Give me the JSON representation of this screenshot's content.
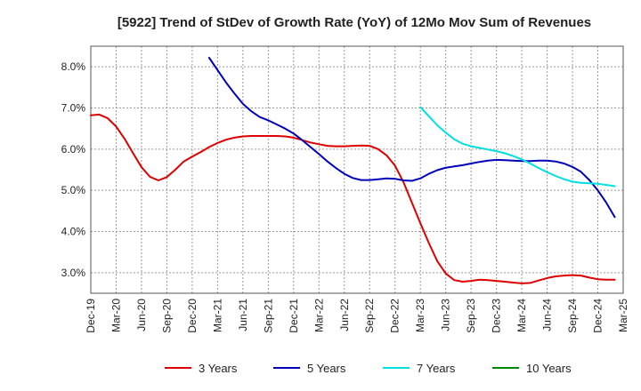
{
  "chart_data": {
    "type": "line",
    "title": "[5922]  Trend of StDev of Growth Rate (YoY) of 12Mo Mov Sum of Revenues",
    "xlabel": "",
    "ylabel": "",
    "ylim": [
      2.5,
      8.5
    ],
    "grid": true,
    "legend_position": "bottom",
    "x_tick_labels": [
      "Dec-19",
      "Mar-20",
      "Jun-20",
      "Sep-20",
      "Dec-20",
      "Mar-21",
      "Jun-21",
      "Sep-21",
      "Dec-21",
      "Mar-22",
      "Jun-22",
      "Sep-22",
      "Dec-22",
      "Mar-23",
      "Jun-23",
      "Sep-23",
      "Dec-23",
      "Mar-24",
      "Jun-24",
      "Sep-24",
      "Dec-24",
      "Mar-25"
    ],
    "y_ticks": [
      3.0,
      4.0,
      5.0,
      6.0,
      7.0,
      8.0
    ],
    "y_tick_labels": [
      "3.0%",
      "4.0%",
      "5.0%",
      "6.0%",
      "7.0%",
      "8.0%"
    ],
    "series": [
      {
        "name": "3 Years",
        "color": "#dd0000",
        "values": [
          [
            0,
            6.82
          ],
          [
            1,
            6.84
          ],
          [
            2,
            6.75
          ],
          [
            3,
            6.55
          ],
          [
            4,
            6.25
          ],
          [
            5,
            5.9
          ],
          [
            6,
            5.56
          ],
          [
            7,
            5.33
          ],
          [
            8,
            5.24
          ],
          [
            9,
            5.32
          ],
          [
            10,
            5.5
          ],
          [
            11,
            5.7
          ],
          [
            12,
            5.82
          ],
          [
            13,
            5.93
          ],
          [
            14,
            6.05
          ],
          [
            15,
            6.15
          ],
          [
            16,
            6.23
          ],
          [
            17,
            6.28
          ],
          [
            18,
            6.31
          ],
          [
            19,
            6.32
          ],
          [
            20,
            6.32
          ],
          [
            21,
            6.32
          ],
          [
            22,
            6.32
          ],
          [
            23,
            6.31
          ],
          [
            24,
            6.28
          ],
          [
            25,
            6.22
          ],
          [
            26,
            6.16
          ],
          [
            27,
            6.12
          ],
          [
            28,
            6.08
          ],
          [
            29,
            6.07
          ],
          [
            30,
            6.07
          ],
          [
            31,
            6.08
          ],
          [
            32,
            6.09
          ],
          [
            33,
            6.08
          ],
          [
            34,
            6.0
          ],
          [
            35,
            5.85
          ],
          [
            36,
            5.6
          ],
          [
            37,
            5.2
          ],
          [
            38,
            4.7
          ],
          [
            39,
            4.2
          ],
          [
            40,
            3.72
          ],
          [
            41,
            3.28
          ],
          [
            42,
            2.98
          ],
          [
            43,
            2.82
          ],
          [
            44,
            2.78
          ],
          [
            45,
            2.8
          ],
          [
            46,
            2.83
          ],
          [
            47,
            2.82
          ],
          [
            48,
            2.8
          ],
          [
            49,
            2.78
          ],
          [
            50,
            2.76
          ],
          [
            51,
            2.74
          ],
          [
            52,
            2.75
          ],
          [
            53,
            2.81
          ],
          [
            54,
            2.87
          ],
          [
            55,
            2.91
          ],
          [
            56,
            2.93
          ],
          [
            57,
            2.94
          ],
          [
            58,
            2.93
          ],
          [
            59,
            2.88
          ],
          [
            60,
            2.84
          ],
          [
            61,
            2.83
          ],
          [
            62,
            2.83
          ]
        ]
      },
      {
        "name": "5 Years",
        "color": "#0000bb",
        "values": [
          [
            14,
            8.22
          ],
          [
            15,
            7.92
          ],
          [
            16,
            7.62
          ],
          [
            17,
            7.35
          ],
          [
            18,
            7.1
          ],
          [
            19,
            6.92
          ],
          [
            20,
            6.78
          ],
          [
            21,
            6.7
          ],
          [
            22,
            6.6
          ],
          [
            23,
            6.5
          ],
          [
            24,
            6.38
          ],
          [
            25,
            6.22
          ],
          [
            26,
            6.05
          ],
          [
            27,
            5.88
          ],
          [
            28,
            5.7
          ],
          [
            29,
            5.54
          ],
          [
            30,
            5.4
          ],
          [
            31,
            5.3
          ],
          [
            32,
            5.25
          ],
          [
            33,
            5.25
          ],
          [
            34,
            5.27
          ],
          [
            35,
            5.29
          ],
          [
            36,
            5.28
          ],
          [
            37,
            5.24
          ],
          [
            38,
            5.23
          ],
          [
            39,
            5.29
          ],
          [
            40,
            5.4
          ],
          [
            41,
            5.49
          ],
          [
            42,
            5.55
          ],
          [
            43,
            5.58
          ],
          [
            44,
            5.61
          ],
          [
            45,
            5.65
          ],
          [
            46,
            5.69
          ],
          [
            47,
            5.72
          ],
          [
            48,
            5.74
          ],
          [
            49,
            5.73
          ],
          [
            50,
            5.72
          ],
          [
            51,
            5.71
          ],
          [
            52,
            5.71
          ],
          [
            53,
            5.72
          ],
          [
            54,
            5.72
          ],
          [
            55,
            5.7
          ],
          [
            56,
            5.65
          ],
          [
            57,
            5.57
          ],
          [
            58,
            5.45
          ],
          [
            59,
            5.25
          ],
          [
            60,
            5.0
          ],
          [
            61,
            4.7
          ],
          [
            62,
            4.35
          ]
        ]
      },
      {
        "name": "7 Years",
        "color": "#00e0e0",
        "values": [
          [
            39,
            7.02
          ],
          [
            40,
            6.8
          ],
          [
            41,
            6.58
          ],
          [
            42,
            6.4
          ],
          [
            43,
            6.24
          ],
          [
            44,
            6.13
          ],
          [
            45,
            6.07
          ],
          [
            46,
            6.03
          ],
          [
            47,
            5.99
          ],
          [
            48,
            5.95
          ],
          [
            49,
            5.9
          ],
          [
            50,
            5.83
          ],
          [
            51,
            5.75
          ],
          [
            52,
            5.65
          ],
          [
            53,
            5.54
          ],
          [
            54,
            5.44
          ],
          [
            55,
            5.35
          ],
          [
            56,
            5.27
          ],
          [
            57,
            5.21
          ],
          [
            58,
            5.18
          ],
          [
            59,
            5.17
          ],
          [
            60,
            5.16
          ],
          [
            61,
            5.13
          ],
          [
            62,
            5.1
          ]
        ]
      },
      {
        "name": "10 Years",
        "color": "#008800",
        "values": []
      }
    ]
  }
}
